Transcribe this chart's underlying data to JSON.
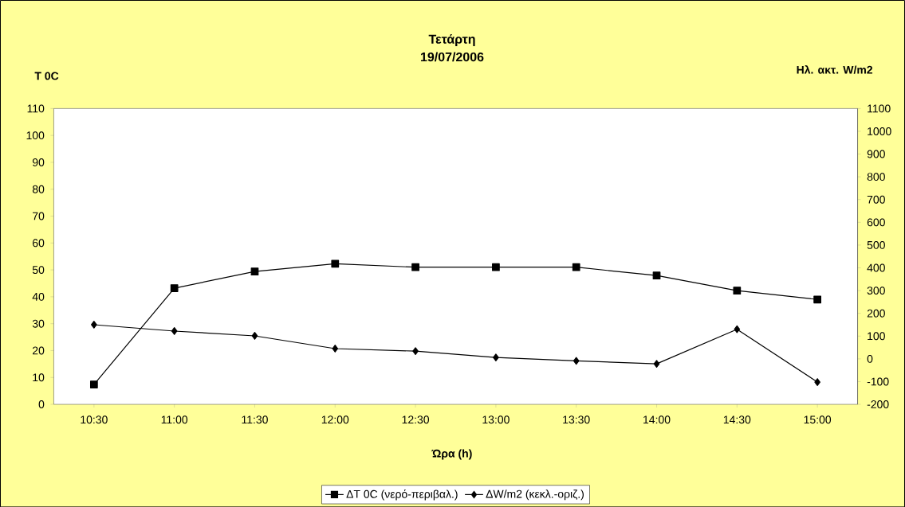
{
  "chart_data": {
    "type": "line",
    "title": "Τετάρτη",
    "subtitle": "19/07/2006",
    "xlabel": "Ώρα (h)",
    "ylabel": "T 0C",
    "y2label": "Ηλ. ακτ. W/m2",
    "categories": [
      "10:30",
      "11:00",
      "11:30",
      "12:00",
      "12:30",
      "13:00",
      "13:30",
      "14:00",
      "14:30",
      "15:00"
    ],
    "series": [
      {
        "name": "ΔT 0C (νερό-περιβαλ.)",
        "color": "#000000",
        "marker": "square",
        "values": [
          7.4,
          43.2,
          49.4,
          52.3,
          51,
          51,
          51,
          47.9,
          42.3,
          39
        ]
      },
      {
        "name": "ΔW/m2 (κεκλ.-οριζ.)",
        "color": "#000000",
        "marker": "diamond",
        "axis": "y2",
        "values": [
          150,
          122,
          101,
          45,
          34,
          6,
          -9,
          -22,
          130,
          -102
        ]
      }
    ],
    "ylim": [
      0,
      110
    ],
    "yticks": [
      0,
      10,
      20,
      30,
      40,
      50,
      60,
      70,
      80,
      90,
      100,
      110
    ],
    "y2lim": [
      -200,
      1100
    ],
    "y2ticks": [
      -200,
      -100,
      0,
      100,
      200,
      300,
      400,
      500,
      600,
      700,
      800,
      900,
      1000,
      1100
    ],
    "grid": false,
    "legend": "bottom",
    "line_style": "solid"
  }
}
